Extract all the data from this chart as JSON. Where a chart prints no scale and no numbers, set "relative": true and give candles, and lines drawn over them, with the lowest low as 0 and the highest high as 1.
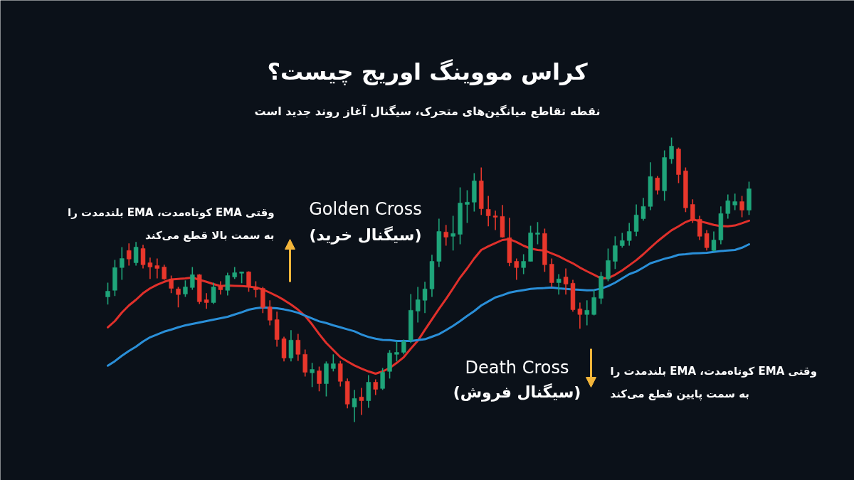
{
  "chart_data": {
    "type": "candlestick",
    "relative": true,
    "title": "کراس مووینگ اوریج چیست؟",
    "subtitle": "نقطه تقاطع میانگین‌های متحرک، سیگنال آغاز روند جدید است",
    "annotations": [
      "وقتی EMA کوتاه‌مدت، EMA بلندمدت را\nبه سمت بالا قطع می‌کند",
      "Golden Cross\n(سیگنال خرید)",
      "Death Cross\n(سیگنال فروش)",
      "وقتی EMA کوتاه‌مدت، EMA بلندمدت را\nبه سمت پایین قطع می‌کند"
    ],
    "categories": [
      null,
      null,
      null,
      null,
      null,
      null,
      null,
      null,
      null,
      null,
      null,
      null,
      null,
      null,
      null,
      null,
      null,
      null,
      null,
      null,
      null,
      null,
      null,
      null,
      null,
      null,
      null,
      null,
      null,
      null,
      null,
      null,
      null,
      null,
      null,
      null,
      null,
      null,
      null,
      null,
      null,
      null,
      null,
      null,
      null,
      null,
      null,
      null,
      null,
      null,
      null,
      null,
      null,
      null,
      null,
      null,
      null,
      null,
      null,
      null,
      null,
      null,
      null,
      null,
      null,
      null,
      null,
      null,
      null,
      null,
      null,
      null,
      null,
      null,
      null,
      null,
      null,
      null,
      null,
      null,
      null,
      null,
      null,
      null,
      null,
      null,
      null,
      null,
      null,
      null,
      null,
      null
    ],
    "ohlc": [
      [
        0.44,
        0.49,
        0.413,
        0.46
      ],
      [
        0.463,
        0.57,
        0.443,
        0.543
      ],
      [
        0.543,
        0.615,
        0.5,
        0.575
      ],
      [
        0.603,
        0.628,
        0.55,
        0.573
      ],
      [
        0.56,
        0.633,
        0.55,
        0.615
      ],
      [
        0.61,
        0.623,
        0.54,
        0.553
      ],
      [
        0.56,
        0.578,
        0.503,
        0.545
      ],
      [
        0.55,
        0.575,
        0.505,
        0.54
      ],
      [
        0.545,
        0.553,
        0.5,
        0.503
      ],
      [
        0.503,
        0.515,
        0.453,
        0.47
      ],
      [
        0.468,
        0.475,
        0.403,
        0.448
      ],
      [
        0.45,
        0.498,
        0.44,
        0.475
      ],
      [
        0.473,
        0.545,
        0.465,
        0.518
      ],
      [
        0.518,
        0.52,
        0.415,
        0.423
      ],
      [
        0.43,
        0.453,
        0.398,
        0.42
      ],
      [
        0.42,
        0.49,
        0.415,
        0.475
      ],
      [
        0.478,
        0.495,
        0.448,
        0.465
      ],
      [
        0.463,
        0.525,
        0.445,
        0.515
      ],
      [
        0.51,
        0.545,
        0.503,
        0.525
      ],
      [
        0.523,
        0.528,
        0.488,
        0.528
      ],
      [
        0.528,
        0.53,
        0.458,
        0.475
      ],
      [
        0.475,
        0.495,
        0.438,
        0.465
      ],
      [
        0.47,
        0.475,
        0.383,
        0.403
      ],
      [
        0.405,
        0.428,
        0.34,
        0.358
      ],
      [
        0.36,
        0.388,
        0.265,
        0.29
      ],
      [
        0.293,
        0.3,
        0.213,
        0.225
      ],
      [
        0.225,
        0.323,
        0.213,
        0.288
      ],
      [
        0.288,
        0.31,
        0.215,
        0.238
      ],
      [
        0.238,
        0.255,
        0.16,
        0.175
      ],
      [
        0.173,
        0.208,
        0.123,
        0.185
      ],
      [
        0.18,
        0.195,
        0.108,
        0.135
      ],
      [
        0.135,
        0.213,
        0.09,
        0.205
      ],
      [
        0.188,
        0.238,
        0.178,
        0.205
      ],
      [
        0.205,
        0.215,
        0.125,
        0.143
      ],
      [
        0.143,
        0.153,
        0.048,
        0.063
      ],
      [
        0.053,
        0.113,
        0.0,
        0.083
      ],
      [
        0.088,
        0.12,
        0.025,
        0.075
      ],
      [
        0.075,
        0.165,
        0.05,
        0.14
      ],
      [
        0.14,
        0.15,
        0.095,
        0.115
      ],
      [
        0.118,
        0.19,
        0.113,
        0.175
      ],
      [
        0.178,
        0.253,
        0.153,
        0.243
      ],
      [
        0.238,
        0.283,
        0.213,
        0.245
      ],
      [
        0.245,
        0.29,
        0.238,
        0.283
      ],
      [
        0.288,
        0.45,
        0.278,
        0.393
      ],
      [
        0.39,
        0.475,
        0.35,
        0.43
      ],
      [
        0.428,
        0.493,
        0.383,
        0.468
      ],
      [
        0.468,
        0.588,
        0.44,
        0.565
      ],
      [
        0.565,
        0.715,
        0.545,
        0.67
      ],
      [
        0.668,
        0.693,
        0.62,
        0.65
      ],
      [
        0.653,
        0.725,
        0.603,
        0.663
      ],
      [
        0.66,
        0.825,
        0.625,
        0.77
      ],
      [
        0.765,
        0.815,
        0.7,
        0.773
      ],
      [
        0.773,
        0.875,
        0.74,
        0.848
      ],
      [
        0.848,
        0.895,
        0.728,
        0.75
      ],
      [
        0.748,
        0.795,
        0.688,
        0.725
      ],
      [
        0.725,
        0.743,
        0.675,
        0.72
      ],
      [
        0.723,
        0.763,
        0.648,
        0.65
      ],
      [
        0.648,
        0.718,
        0.548,
        0.56
      ],
      [
        0.565,
        0.575,
        0.5,
        0.543
      ],
      [
        0.543,
        0.59,
        0.52,
        0.565
      ],
      [
        0.565,
        0.69,
        0.565,
        0.665
      ],
      [
        0.66,
        0.703,
        0.625,
        0.665
      ],
      [
        0.663,
        0.68,
        0.528,
        0.553
      ],
      [
        0.555,
        0.575,
        0.475,
        0.49
      ],
      [
        0.49,
        0.52,
        0.448,
        0.503
      ],
      [
        0.51,
        0.54,
        0.448,
        0.485
      ],
      [
        0.488,
        0.5,
        0.388,
        0.395
      ],
      [
        0.398,
        0.42,
        0.328,
        0.378
      ],
      [
        0.378,
        0.428,
        0.34,
        0.393
      ],
      [
        0.378,
        0.465,
        0.375,
        0.438
      ],
      [
        0.435,
        0.528,
        0.415,
        0.513
      ],
      [
        0.503,
        0.61,
        0.495,
        0.568
      ],
      [
        0.565,
        0.653,
        0.538,
        0.62
      ],
      [
        0.62,
        0.665,
        0.613,
        0.638
      ],
      [
        0.638,
        0.7,
        0.62,
        0.67
      ],
      [
        0.67,
        0.765,
        0.653,
        0.728
      ],
      [
        0.715,
        0.788,
        0.708,
        0.758
      ],
      [
        0.758,
        0.913,
        0.745,
        0.863
      ],
      [
        0.858,
        0.865,
        0.8,
        0.815
      ],
      [
        0.813,
        0.955,
        0.778,
        0.93
      ],
      [
        0.925,
        1.0,
        0.908,
        0.97
      ],
      [
        0.96,
        0.965,
        0.84,
        0.87
      ],
      [
        0.883,
        0.895,
        0.738,
        0.753
      ],
      [
        0.765,
        0.783,
        0.7,
        0.708
      ],
      [
        0.713,
        0.725,
        0.64,
        0.653
      ],
      [
        0.663,
        0.675,
        0.603,
        0.613
      ],
      [
        0.603,
        0.67,
        0.6,
        0.64
      ],
      [
        0.64,
        0.758,
        0.625,
        0.733
      ],
      [
        0.733,
        0.8,
        0.715,
        0.778
      ],
      [
        0.763,
        0.803,
        0.745,
        0.775
      ],
      [
        0.775,
        0.795,
        0.72,
        0.745
      ],
      [
        0.745,
        0.845,
        0.728,
        0.82
      ]
    ],
    "colors": [
      "#1fa57a",
      "#1fa57a",
      "#1fa57a",
      "#e8372c",
      "#1fa57a",
      "#e8372c",
      "#e8372c",
      "#e8372c",
      "#e8372c",
      "#e8372c",
      "#e8372c",
      "#1fa57a",
      "#1fa57a",
      "#e8372c",
      "#e8372c",
      "#1fa57a",
      "#e8372c",
      "#1fa57a",
      "#1fa57a",
      "#1fa57a",
      "#e8372c",
      "#e8372c",
      "#e8372c",
      "#e8372c",
      "#e8372c",
      "#e8372c",
      "#1fa57a",
      "#e8372c",
      "#e8372c",
      "#1fa57a",
      "#e8372c",
      "#1fa57a",
      "#1fa57a",
      "#e8372c",
      "#e8372c",
      "#1fa57a",
      "#e8372c",
      "#1fa57a",
      "#e8372c",
      "#1fa57a",
      "#1fa57a",
      "#1fa57a",
      "#1fa57a",
      "#1fa57a",
      "#1fa57a",
      "#1fa57a",
      "#1fa57a",
      "#1fa57a",
      "#e8372c",
      "#1fa57a",
      "#1fa57a",
      "#1fa57a",
      "#1fa57a",
      "#e8372c",
      "#e8372c",
      "#e8372c",
      "#e8372c",
      "#e8372c",
      "#e8372c",
      "#1fa57a",
      "#1fa57a",
      "#1fa57a",
      "#e8372c",
      "#e8372c",
      "#1fa57a",
      "#e8372c",
      "#e8372c",
      "#e8372c",
      "#1fa57a",
      "#1fa57a",
      "#1fa57a",
      "#1fa57a",
      "#1fa57a",
      "#1fa57a",
      "#1fa57a",
      "#1fa57a",
      "#1fa57a",
      "#1fa57a",
      "#e8372c",
      "#1fa57a",
      "#1fa57a",
      "#e8372c",
      "#e8372c",
      "#e8372c",
      "#e8372c",
      "#e8372c",
      "#1fa57a",
      "#1fa57a",
      "#1fa57a",
      "#1fa57a",
      "#e8372c",
      "#1fa57a"
    ],
    "series": [
      {
        "type": "line",
        "color": "#e0302b",
        "values": [
          0.333,
          0.355,
          0.385,
          0.41,
          0.43,
          0.453,
          0.47,
          0.483,
          0.493,
          0.501,
          0.503,
          0.505,
          0.508,
          0.5,
          0.493,
          0.485,
          0.478,
          0.48,
          0.479,
          0.478,
          0.476,
          0.473,
          0.466,
          0.455,
          0.443,
          0.429,
          0.413,
          0.395,
          0.373,
          0.343,
          0.309,
          0.278,
          0.253,
          0.228,
          0.213,
          0.199,
          0.188,
          0.178,
          0.17,
          0.178,
          0.19,
          0.208,
          0.228,
          0.258,
          0.286,
          0.324,
          0.361,
          0.398,
          0.433,
          0.47,
          0.508,
          0.54,
          0.575,
          0.605,
          0.618,
          0.629,
          0.64,
          0.643,
          0.633,
          0.62,
          0.61,
          0.605,
          0.603,
          0.593,
          0.583,
          0.57,
          0.558,
          0.543,
          0.53,
          0.518,
          0.505,
          0.506,
          0.518,
          0.533,
          0.551,
          0.569,
          0.59,
          0.613,
          0.635,
          0.655,
          0.674,
          0.688,
          0.703,
          0.713,
          0.706,
          0.7,
          0.693,
          0.689,
          0.688,
          0.691,
          0.699,
          0.708
        ]
      },
      {
        "type": "line",
        "color": "#2a8fd8",
        "values": [
          0.198,
          0.214,
          0.233,
          0.25,
          0.265,
          0.283,
          0.298,
          0.308,
          0.318,
          0.325,
          0.333,
          0.34,
          0.345,
          0.35,
          0.355,
          0.36,
          0.365,
          0.37,
          0.378,
          0.386,
          0.395,
          0.4,
          0.403,
          0.401,
          0.4,
          0.396,
          0.391,
          0.384,
          0.374,
          0.364,
          0.354,
          0.348,
          0.34,
          0.333,
          0.326,
          0.319,
          0.308,
          0.299,
          0.293,
          0.289,
          0.288,
          0.285,
          0.285,
          0.285,
          0.288,
          0.291,
          0.3,
          0.309,
          0.323,
          0.338,
          0.355,
          0.373,
          0.39,
          0.41,
          0.424,
          0.438,
          0.446,
          0.455,
          0.46,
          0.464,
          0.468,
          0.47,
          0.471,
          0.473,
          0.47,
          0.468,
          0.466,
          0.465,
          0.463,
          0.464,
          0.469,
          0.478,
          0.49,
          0.505,
          0.52,
          0.529,
          0.543,
          0.558,
          0.566,
          0.574,
          0.58,
          0.588,
          0.59,
          0.593,
          0.594,
          0.595,
          0.598,
          0.601,
          0.603,
          0.605,
          0.613,
          0.625
        ]
      }
    ]
  }
}
